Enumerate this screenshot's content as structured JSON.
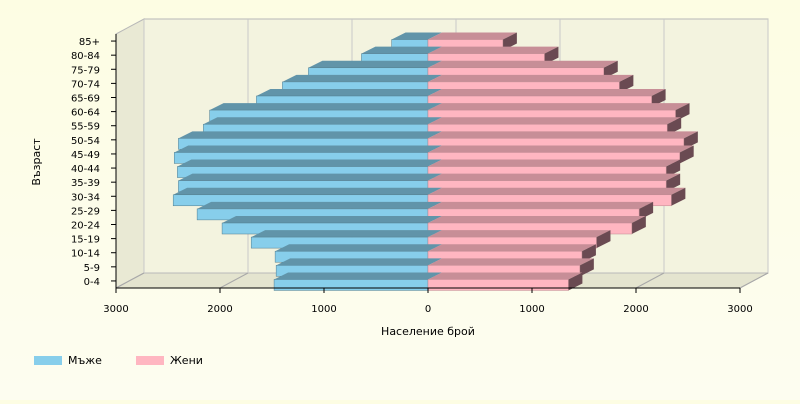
{
  "chart_data": {
    "type": "bar",
    "orientation": "horizontal",
    "style": "3d-population-pyramid",
    "xlabel": "Население брой",
    "ylabel": "Възраст",
    "xlim": [
      -3000,
      3000
    ],
    "x_ticks": [
      {
        "value": -3000,
        "label": "3000"
      },
      {
        "value": -2000,
        "label": "2000"
      },
      {
        "value": -1000,
        "label": "1000"
      },
      {
        "value": 0,
        "label": "0"
      },
      {
        "value": 1000,
        "label": "1000"
      },
      {
        "value": 2000,
        "label": "2000"
      },
      {
        "value": 3000,
        "label": "3000"
      }
    ],
    "categories": [
      "0-4",
      "5-9",
      "10-14",
      "15-19",
      "20-24",
      "25-29",
      "30-34",
      "35-39",
      "40-44",
      "45-49",
      "50-54",
      "55-59",
      "60-64",
      "65-69",
      "70-74",
      "75-79",
      "80-84",
      "85+"
    ],
    "series": [
      {
        "name": "Мъже",
        "color": "#87ceeb",
        "values": [
          1480,
          1460,
          1470,
          1700,
          1980,
          2220,
          2450,
          2400,
          2410,
          2440,
          2400,
          2160,
          2100,
          1650,
          1400,
          1150,
          640,
          350
        ]
      },
      {
        "name": "Жени",
        "color": "#ffb6c1",
        "values": [
          1350,
          1460,
          1480,
          1620,
          1960,
          2030,
          2340,
          2290,
          2290,
          2420,
          2460,
          2300,
          2380,
          2150,
          1840,
          1690,
          1120,
          720
        ]
      }
    ],
    "legend_position": "bottom-left",
    "grid": true
  }
}
